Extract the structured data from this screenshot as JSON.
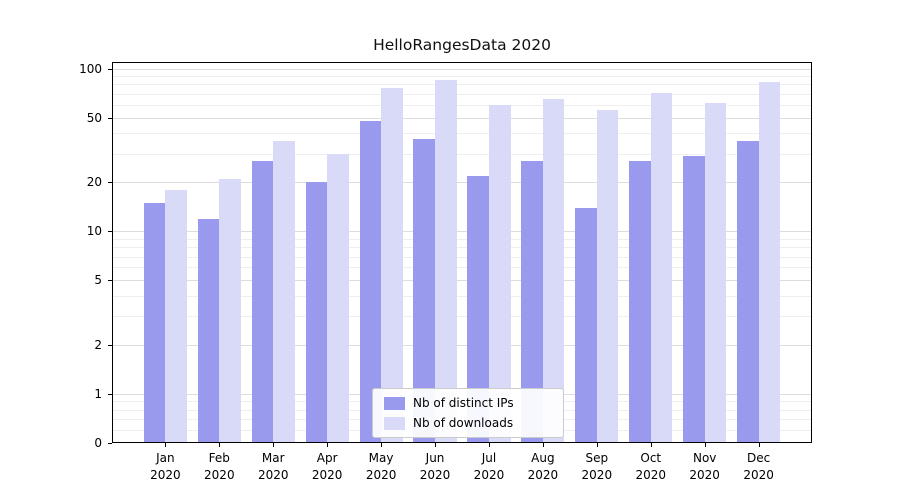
{
  "chart_data": {
    "type": "bar",
    "title": "HelloRangesData 2020",
    "categories": [
      "Jan",
      "Feb",
      "Mar",
      "Apr",
      "May",
      "Jun",
      "Jul",
      "Aug",
      "Sep",
      "Oct",
      "Nov",
      "Dec"
    ],
    "year": "2020",
    "series": [
      {
        "name": "Nb of distinct IPs",
        "color": "#9999ee",
        "values": [
          15,
          12,
          27,
          20,
          48,
          37,
          22,
          27,
          14,
          27,
          29,
          36
        ]
      },
      {
        "name": "Nb of downloads",
        "color": "#d9d9f8",
        "values": [
          18,
          21,
          36,
          30,
          76,
          85,
          60,
          65,
          56,
          71,
          62,
          83
        ]
      }
    ],
    "yscale": "log (0 pinned to baseline)",
    "ylim": [
      0,
      110
    ],
    "y_ticks": [
      100,
      50,
      20,
      10,
      5,
      2,
      1,
      0
    ],
    "minor_ticks": [
      0.6,
      0.7,
      0.8,
      0.9,
      3,
      4,
      6,
      7,
      8,
      9,
      30,
      40,
      60,
      70,
      80,
      90
    ],
    "grid": true,
    "legend_position": "lower center",
    "colors": {
      "major_grid": "#dcdcdc",
      "minor_grid": "#efefef",
      "spine": "#000000",
      "background": "#ffffff"
    }
  }
}
